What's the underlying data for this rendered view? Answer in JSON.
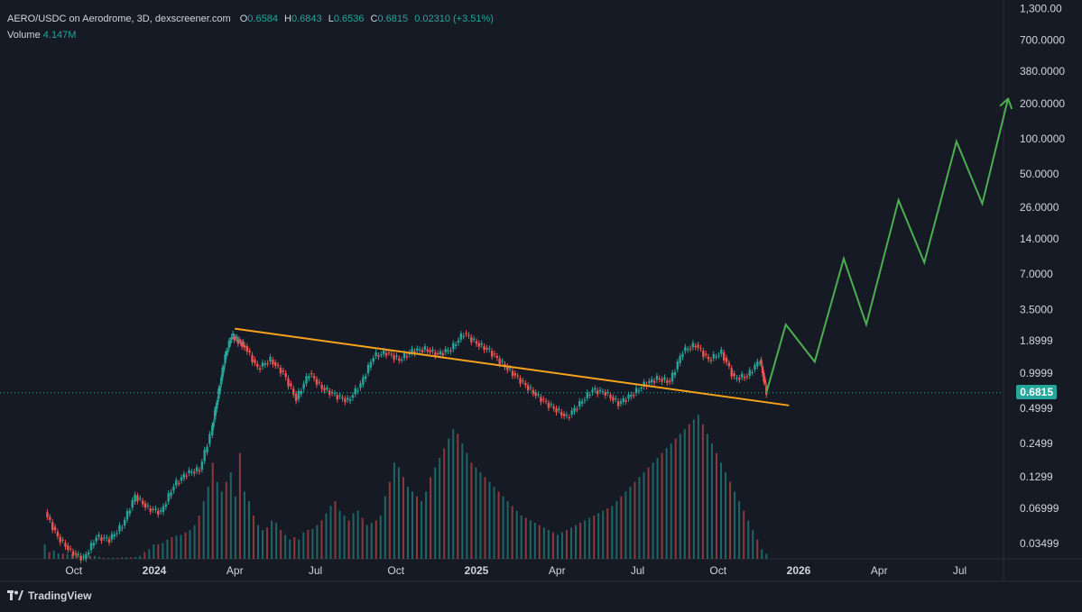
{
  "legend": {
    "symbol": "AERO/USDC on Aerodrome, 3D, dexscreener.com",
    "open_label": "O",
    "open": "0.6584",
    "high_label": "H",
    "high": "0.6843",
    "low_label": "L",
    "low": "0.6536",
    "close_label": "C",
    "close": "0.6815",
    "change": "0.02310 (+3.51%)",
    "volume_label": "Volume",
    "volume": "4.147M"
  },
  "last_price": "0.6815",
  "brand": "TradingView",
  "colors": {
    "background": "#161a25",
    "up": "#26a69a",
    "down": "#ef5350",
    "trendline": "#f7a21b",
    "projection": "#4caf50",
    "text": "#d1d4dc"
  },
  "chart_data": {
    "type": "candlestick",
    "scale": "log",
    "title": "AERO/USDC on Aerodrome, 3D, dexscreener.com",
    "y_ticks": [
      "1,300.00",
      "700.0000",
      "380.0000",
      "200.0000",
      "100.0000",
      "50.0000",
      "26.0000",
      "14.0000",
      "7.0000",
      "3.5000",
      "1.8999",
      "0.9999",
      "0.4999",
      "0.2499",
      "0.1299",
      "0.06999",
      "0.03499"
    ],
    "y_tick_values": [
      1300,
      700,
      380,
      200,
      100,
      50,
      26,
      14,
      7,
      3.5,
      1.8999,
      0.9999,
      0.4999,
      0.2499,
      0.1299,
      0.06999,
      0.03499
    ],
    "x_ticks": [
      {
        "label": "Oct",
        "t": 2023.75,
        "bold": false
      },
      {
        "label": "2024",
        "t": 2024.0,
        "bold": true
      },
      {
        "label": "Apr",
        "t": 2024.25,
        "bold": false
      },
      {
        "label": "Jul",
        "t": 2024.5,
        "bold": false
      },
      {
        "label": "Oct",
        "t": 2024.75,
        "bold": false
      },
      {
        "label": "2025",
        "t": 2025.0,
        "bold": true
      },
      {
        "label": "Apr",
        "t": 2025.25,
        "bold": false
      },
      {
        "label": "Jul",
        "t": 2025.5,
        "bold": false
      },
      {
        "label": "Oct",
        "t": 2025.75,
        "bold": false
      },
      {
        "label": "2026",
        "t": 2026.0,
        "bold": true
      },
      {
        "label": "Apr",
        "t": 2026.25,
        "bold": false
      },
      {
        "label": "Jul",
        "t": 2026.5,
        "bold": false
      }
    ],
    "price_path": {
      "t": [
        2023.66,
        2023.7,
        2023.74,
        2023.78,
        2023.82,
        2023.86,
        2023.9,
        2023.94,
        2023.98,
        2024.02,
        2024.06,
        2024.1,
        2024.14,
        2024.18,
        2024.2,
        2024.22,
        2024.24,
        2024.26,
        2024.28,
        2024.32,
        2024.36,
        2024.4,
        2024.44,
        2024.48,
        2024.52,
        2024.56,
        2024.6,
        2024.64,
        2024.68,
        2024.72,
        2024.76,
        2024.8,
        2024.84,
        2024.88,
        2024.92,
        2024.96,
        2025.0,
        2025.04,
        2025.08,
        2025.12,
        2025.16,
        2025.2,
        2025.24,
        2025.28,
        2025.32,
        2025.36,
        2025.4,
        2025.44,
        2025.48,
        2025.52,
        2025.56,
        2025.6,
        2025.64,
        2025.68,
        2025.72,
        2025.76,
        2025.8,
        2025.84,
        2025.88,
        2025.9
      ],
      "close": [
        0.065,
        0.04,
        0.03,
        0.026,
        0.04,
        0.038,
        0.05,
        0.09,
        0.07,
        0.065,
        0.11,
        0.14,
        0.15,
        0.35,
        0.7,
        1.4,
        2.1,
        1.9,
        1.7,
        1.1,
        1.3,
        1.0,
        0.6,
        1.0,
        0.75,
        0.65,
        0.58,
        0.8,
        1.4,
        1.5,
        1.3,
        1.55,
        1.6,
        1.45,
        1.6,
        2.2,
        1.8,
        1.55,
        1.2,
        0.95,
        0.75,
        0.6,
        0.5,
        0.42,
        0.55,
        0.72,
        0.68,
        0.55,
        0.65,
        0.8,
        0.9,
        0.85,
        1.55,
        1.75,
        1.3,
        1.5,
        0.9,
        0.95,
        1.3,
        0.6815
      ]
    },
    "volume": {
      "t_start": 2023.66,
      "t_end": 2025.9,
      "values_M": [
        30,
        14,
        17,
        11,
        11,
        10,
        10,
        11,
        7,
        8,
        6,
        6,
        4,
        2,
        2,
        2,
        2,
        3,
        3,
        3,
        4,
        6,
        14,
        20,
        30,
        30,
        33,
        40,
        45,
        48,
        50,
        55,
        60,
        70,
        90,
        120,
        150,
        200,
        160,
        140,
        160,
        180,
        130,
        220,
        140,
        120,
        90,
        70,
        60,
        65,
        80,
        75,
        60,
        50,
        40,
        45,
        40,
        55,
        60,
        62,
        70,
        80,
        95,
        110,
        120,
        100,
        90,
        80,
        95,
        100,
        85,
        70,
        75,
        80,
        90,
        130,
        160,
        200,
        190,
        170,
        150,
        140,
        130,
        120,
        140,
        170,
        190,
        210,
        230,
        250,
        270,
        260,
        240,
        220,
        200,
        190,
        180,
        170,
        160,
        150,
        140,
        130,
        120,
        110,
        100,
        90,
        85,
        80,
        75,
        70,
        65,
        60,
        55,
        50,
        55,
        60,
        65,
        70,
        75,
        80,
        85,
        90,
        95,
        100,
        105,
        110,
        120,
        130,
        140,
        150,
        160,
        170,
        180,
        190,
        200,
        210,
        220,
        230,
        240,
        250,
        260,
        270,
        280,
        290,
        300,
        280,
        260,
        240,
        220,
        200,
        180,
        160,
        140,
        120,
        100,
        80,
        60,
        40,
        20,
        10
      ],
      "units": "M"
    },
    "trendline": {
      "t": [
        2024.25,
        2025.97
      ],
      "price": [
        2.4,
        0.53
      ]
    },
    "projection": {
      "t": [
        2025.9,
        2025.96,
        2026.05,
        2026.14,
        2026.21,
        2026.31,
        2026.39,
        2026.49,
        2026.57,
        2026.65
      ],
      "price": [
        0.6815,
        2.6,
        1.25,
        9.5,
        2.6,
        30,
        8.8,
        95,
        28,
        220
      ]
    },
    "last_price": 0.6815
  }
}
